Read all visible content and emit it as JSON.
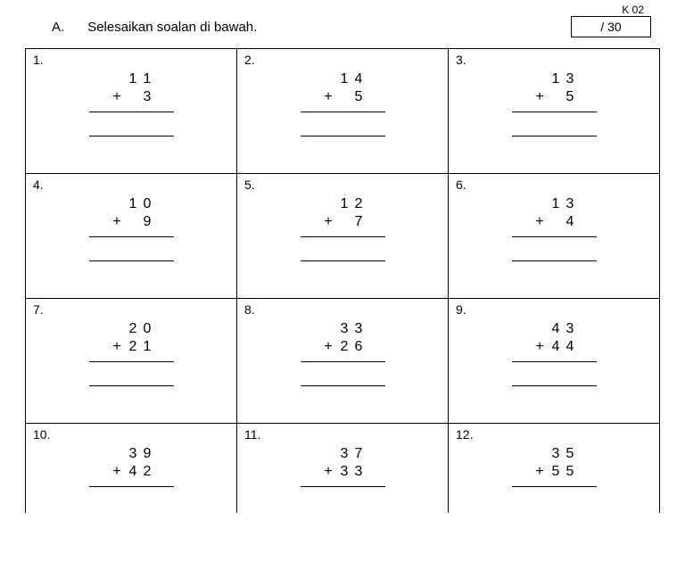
{
  "header": {
    "code": "K 02",
    "section": "A.",
    "instruction": "Selesaikan soalan di bawah.",
    "score": "/ 30"
  },
  "problems": [
    {
      "n": "1.",
      "a_t": "1",
      "a_o": "1",
      "b_t": "",
      "b_o": "3"
    },
    {
      "n": "2.",
      "a_t": "1",
      "a_o": "4",
      "b_t": "",
      "b_o": "5"
    },
    {
      "n": "3.",
      "a_t": "1",
      "a_o": "3",
      "b_t": "",
      "b_o": "5"
    },
    {
      "n": "4.",
      "a_t": "1",
      "a_o": "0",
      "b_t": "",
      "b_o": "9"
    },
    {
      "n": "5.",
      "a_t": "1",
      "a_o": "2",
      "b_t": "",
      "b_o": "7"
    },
    {
      "n": "6.",
      "a_t": "1",
      "a_o": "3",
      "b_t": "",
      "b_o": "4"
    },
    {
      "n": "7.",
      "a_t": "2",
      "a_o": "0",
      "b_t": "2",
      "b_o": "1"
    },
    {
      "n": "8.",
      "a_t": "3",
      "a_o": "3",
      "b_t": "2",
      "b_o": "6"
    },
    {
      "n": "9.",
      "a_t": "4",
      "a_o": "3",
      "b_t": "4",
      "b_o": "4"
    },
    {
      "n": "10.",
      "a_t": "3",
      "a_o": "9",
      "b_t": "4",
      "b_o": "2"
    },
    {
      "n": "11.",
      "a_t": "3",
      "a_o": "7",
      "b_t": "3",
      "b_o": "3"
    },
    {
      "n": "12.",
      "a_t": "3",
      "a_o": "5",
      "b_t": "5",
      "b_o": "5"
    }
  ],
  "style": {
    "page_bg": "#ffffff",
    "text_color": "#000000",
    "border_color": "#000000",
    "title_fontsize": 15,
    "num_fontsize": 16,
    "grid_cols": 3
  }
}
